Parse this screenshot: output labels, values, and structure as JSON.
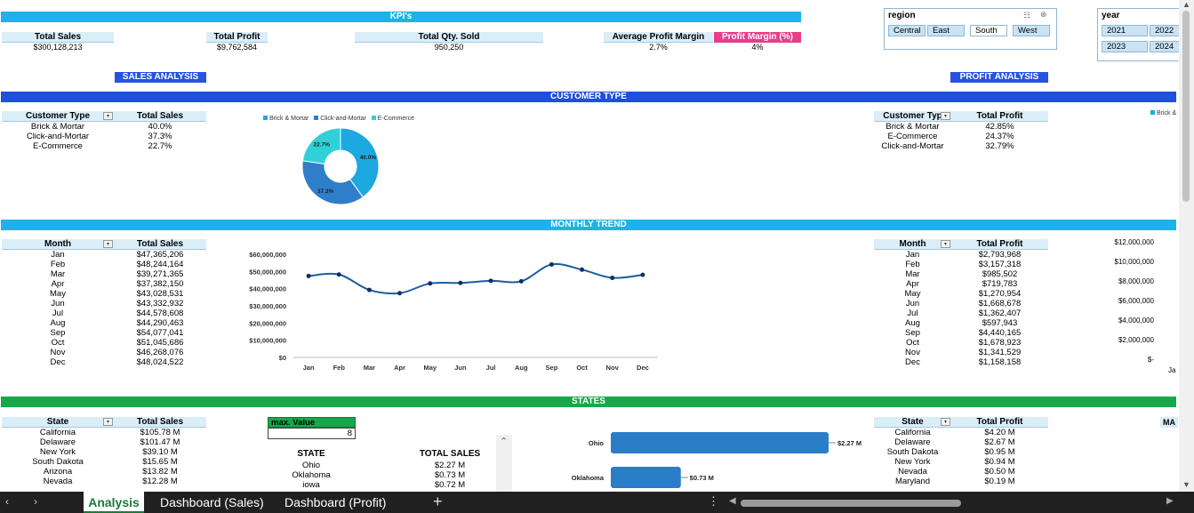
{
  "colors": {
    "kpi_band": "#1bb3e8",
    "section_blue": "#1e4fe0",
    "section_cyan": "#1bb3e8",
    "section_green": "#16a84a",
    "pink": "#e83e8c",
    "donut": [
      "#1ea8e0",
      "#2f7ec9",
      "#2fd0d8"
    ],
    "line": "#1b5e9e",
    "bar": "#2a7ec8"
  },
  "kpi": {
    "title": "KPI's",
    "items": [
      {
        "label": "Total Sales",
        "value": "$300,128,213"
      },
      {
        "label": "Total Profit",
        "value": "$9,762,584"
      },
      {
        "label": "Total Qty. Sold",
        "value": "950,250"
      },
      {
        "label": "Average Profit Margin",
        "value": "2.7%"
      },
      {
        "label": "Profit Margin (%)",
        "value": "4%"
      }
    ]
  },
  "slicers": {
    "region": {
      "title": "region",
      "options": [
        "Central",
        "East",
        "South",
        "West"
      ],
      "selected": [
        "Central",
        "East",
        "West"
      ]
    },
    "year": {
      "title": "year",
      "options": [
        "2021",
        "2022",
        "2023",
        "2024"
      ]
    }
  },
  "labels": {
    "sales_analysis": "SALES ANALYSIS",
    "profit_analysis": "PROFIT ANALYSIS",
    "customer_type": "CUSTOMER TYPE",
    "monthly_trend": "MONTHLY TREND",
    "states": "STATES"
  },
  "customer_sales": {
    "headers": [
      "Customer Type",
      "Total Sales"
    ],
    "rows": [
      [
        "Brick & Mortar",
        "40.0%"
      ],
      [
        "Click-and-Mortar",
        "37.3%"
      ],
      [
        "E-Commerce",
        "22.7%"
      ]
    ]
  },
  "customer_profit": {
    "headers": [
      "Customer Typ",
      "Total Profit"
    ],
    "rows": [
      [
        "Brick & Mortar",
        "42.85%"
      ],
      [
        "E-Commerce",
        "24.37%"
      ],
      [
        "Click-and-Mortar",
        "32.79%"
      ]
    ]
  },
  "monthly_sales": {
    "headers": [
      "Month",
      "Total Sales"
    ],
    "rows": [
      [
        "Jan",
        "$47,365,206"
      ],
      [
        "Feb",
        "$48,244,164"
      ],
      [
        "Mar",
        "$39,271,365"
      ],
      [
        "Apr",
        "$37,382,150"
      ],
      [
        "May",
        "$43,028,531"
      ],
      [
        "Jun",
        "$43,332,932"
      ],
      [
        "Jul",
        "$44,578,608"
      ],
      [
        "Aug",
        "$44,290,463"
      ],
      [
        "Sep",
        "$54,077,041"
      ],
      [
        "Oct",
        "$51,045,686"
      ],
      [
        "Nov",
        "$46,268,076"
      ],
      [
        "Dec",
        "$48,024,522"
      ]
    ]
  },
  "monthly_profit": {
    "headers": [
      "Month",
      "Total Profit"
    ],
    "rows": [
      [
        "Jan",
        "$2,793,968"
      ],
      [
        "Feb",
        "$3,157,318"
      ],
      [
        "Mar",
        "$985,502"
      ],
      [
        "Apr",
        "$719,783"
      ],
      [
        "May",
        "$1,270,954"
      ],
      [
        "Jun",
        "$1,668,678"
      ],
      [
        "Jul",
        "$1,362,407"
      ],
      [
        "Aug",
        "$597,943"
      ],
      [
        "Sep",
        "$4,440,165"
      ],
      [
        "Oct",
        "$1,678,923"
      ],
      [
        "Nov",
        "$1,341,529"
      ],
      [
        "Dec",
        "$1,158,158"
      ]
    ]
  },
  "state_sales": {
    "headers": [
      "State",
      "Total Sales"
    ],
    "rows": [
      [
        "California",
        "$105.78 M"
      ],
      [
        "Delaware",
        "$101.47 M"
      ],
      [
        "New York",
        "$39.10 M"
      ],
      [
        "South Dakota",
        "$15.65 M"
      ],
      [
        "Arizona",
        "$13.82 M"
      ],
      [
        "Nevada",
        "$12.28 M"
      ]
    ]
  },
  "state_profit": {
    "headers": [
      "State",
      "Total Profit"
    ],
    "rows": [
      [
        "California",
        "$4.20 M"
      ],
      [
        "Delaware",
        "$2.67 M"
      ],
      [
        "South Dakota",
        "$0.95 M"
      ],
      [
        "New York",
        "$0.94 M"
      ],
      [
        "Nevada",
        "$0.50 M"
      ],
      [
        "Maryland",
        "$0.19 M"
      ]
    ]
  },
  "max_value": {
    "label": "max. Value",
    "value": "8"
  },
  "top_states": {
    "headers": [
      "STATE",
      "TOTAL SALES"
    ],
    "rows": [
      [
        "Ohio",
        "$2.27 M"
      ],
      [
        "Oklahoma",
        "$0.73 M"
      ],
      [
        "iowa",
        "$0.72 M"
      ]
    ]
  },
  "right_axis": {
    "ticks": [
      "$12,000,000",
      "$10,000,000",
      "$8,000,000",
      "$6,000,000",
      "$4,000,000",
      "$2,000,000",
      "$-"
    ],
    "stub_x": "Ja",
    "stub_legend": "Brick &",
    "stub_tag": "MA"
  },
  "tabs": [
    "Analysis",
    "Dashboard (Sales)",
    "Dashboard (Profit)"
  ],
  "chart_data": [
    {
      "type": "pie",
      "title": "",
      "series": [
        {
          "name": "Brick & Mortar",
          "value": 40.0
        },
        {
          "name": "Click-and-Mortar",
          "value": 37.3
        },
        {
          "name": "E-Commerce",
          "value": 22.7
        }
      ],
      "labels": [
        "40.0%",
        "37.3%",
        "22.7%"
      ],
      "legend": "top"
    },
    {
      "type": "line",
      "title": "",
      "categories": [
        "Jan",
        "Feb",
        "Mar",
        "Apr",
        "May",
        "Jun",
        "Jul",
        "Aug",
        "Sep",
        "Oct",
        "Nov",
        "Dec"
      ],
      "values": [
        47365206,
        48244164,
        39271365,
        37382150,
        43028531,
        43332932,
        44578608,
        44290463,
        54077041,
        51045686,
        46268076,
        48024522
      ],
      "ylim": [
        0,
        60000000
      ],
      "yticks": [
        "$0",
        "$10,000,000",
        "$20,000,000",
        "$30,000,000",
        "$40,000,000",
        "$50,000,000",
        "$60,000,000"
      ]
    },
    {
      "type": "bar",
      "orientation": "horizontal",
      "title": "",
      "categories": [
        "Ohio",
        "Oklahoma"
      ],
      "values": [
        2.27,
        0.73
      ],
      "labels": [
        "$2.27 M",
        "$0.73 M"
      ]
    }
  ]
}
